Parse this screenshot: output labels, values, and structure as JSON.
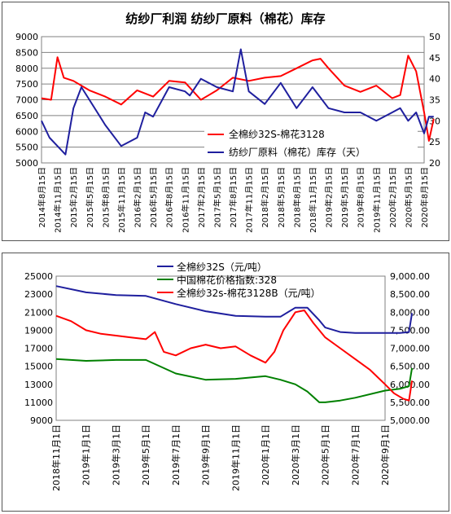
{
  "chart_data": [
    {
      "type": "line",
      "title": "纺纱厂利润  纺纱厂原料（棉花）库存",
      "x_ticks": [
        "2014年8月15日",
        "2014年11月15日",
        "2015年2月15日",
        "2015年5月15日",
        "2015年8月15日",
        "2015年11月15日",
        "2016年2月15日",
        "2016年5月15日",
        "2016年8月15日",
        "2016年11月15日",
        "2017年2月15日",
        "2017年5月15日",
        "2017年8月15日",
        "2017年11月15日",
        "2018年2月15日",
        "2018年5月15日",
        "2018年8月15日",
        "2018年11月15日",
        "2019年2月15日",
        "2019年5月15日",
        "2019年8月15日",
        "2019年11月15日",
        "2020年2月15日",
        "2020年5月15日",
        "2020年8月15日"
      ],
      "y_left": {
        "min": 5000,
        "max": 9000,
        "ticks": [
          "9000",
          "8500",
          "8000",
          "7500",
          "7000",
          "6500",
          "6000",
          "5500",
          "5000"
        ]
      },
      "y_right": {
        "min": 20,
        "max": 50,
        "ticks": [
          "50",
          "45",
          "40",
          "35",
          "30",
          "25",
          "20"
        ]
      },
      "grid": true,
      "legend_position": "inside-bottom-right",
      "series": [
        {
          "name": "全棉纱32S-棉花3128",
          "axis": "left",
          "color": "#ff0000",
          "x": [
            0,
            0.6,
            1.0,
            1.4,
            2,
            3,
            4,
            5,
            6,
            7,
            8,
            9,
            10,
            11,
            12,
            13,
            14,
            15,
            16,
            17,
            17.5,
            18,
            19,
            20,
            21,
            22,
            22.5,
            23,
            23.5,
            24,
            24.3,
            24.6
          ],
          "values": [
            7050,
            7000,
            8350,
            7700,
            7600,
            7300,
            7100,
            6850,
            7300,
            7100,
            7600,
            7550,
            7000,
            7300,
            7700,
            7600,
            7700,
            7750,
            8000,
            8250,
            8300,
            8000,
            7450,
            7250,
            7450,
            7050,
            7150,
            8400,
            7900,
            6600,
            5700,
            6400
          ]
        },
        {
          "name": "纺纱厂原料（棉花）库存（天）",
          "axis": "right",
          "color": "#1f1f9e",
          "x": [
            0,
            0.5,
            1,
            1.5,
            2,
            2.5,
            3,
            4,
            5,
            6,
            6.5,
            7,
            8,
            9,
            9.3,
            10,
            11,
            12,
            12.5,
            13,
            14,
            15,
            16,
            17,
            18,
            19,
            20,
            21,
            22,
            22.5,
            23,
            23.5,
            24,
            24.3,
            24.6
          ],
          "values": [
            30,
            26,
            24,
            22,
            33,
            38,
            35,
            29,
            24,
            26,
            32,
            31,
            38,
            37,
            36,
            40,
            38,
            37,
            47,
            37,
            34,
            39,
            33,
            38,
            33,
            32,
            32,
            30,
            32,
            33,
            30,
            32,
            27,
            31,
            31
          ]
        }
      ]
    },
    {
      "type": "line",
      "x_ticks": [
        "2018年11月1日",
        "2019年1月1日",
        "2019年3月1日",
        "2019年5月1日",
        "2019年7月1日",
        "2019年9月1日",
        "2019年11月1日",
        "2020年1月1日",
        "2020年3月1日",
        "2020年5月1日",
        "2020年7月1日",
        "2020年9月1日"
      ],
      "y_left": {
        "min": 9000,
        "max": 25000,
        "ticks": [
          "25000",
          "23000",
          "21000",
          "19000",
          "17000",
          "15000",
          "13000",
          "11000",
          "9000"
        ]
      },
      "y_right": {
        "min": 5000,
        "max": 9000,
        "ticks": [
          "9,000.00",
          "8,500.00",
          "8,000.00",
          "7,500.00",
          "7,000.00",
          "6,500.00",
          "6,000.00",
          "5,500.00",
          "5,000.00"
        ]
      },
      "grid": false,
      "legend_position": "top-center",
      "series": [
        {
          "name": "全棉纱32S（元/吨）",
          "axis": "left",
          "color": "#1f1f9e",
          "x": [
            0,
            1,
            2,
            3,
            4,
            5,
            6,
            7,
            7.5,
            8,
            8.4,
            8.8,
            9,
            9.5,
            10,
            11,
            11.5,
            11.8,
            11.9
          ],
          "values": [
            23900,
            23200,
            22900,
            22800,
            21900,
            21100,
            20600,
            20500,
            20500,
            21500,
            21500,
            20100,
            19300,
            18800,
            18700,
            18700,
            18700,
            18800,
            20900
          ]
        },
        {
          "name": "中国棉花价格指数:328",
          "axis": "left",
          "color": "#008000",
          "x": [
            0,
            1,
            2,
            3,
            4,
            5,
            6,
            7,
            7.5,
            8,
            8.4,
            8.8,
            9,
            9.5,
            10,
            11,
            11.5,
            11.8,
            11.9
          ],
          "values": [
            15800,
            15600,
            15700,
            15700,
            14200,
            13500,
            13600,
            13900,
            13500,
            13000,
            12200,
            11000,
            11000,
            11200,
            11500,
            12300,
            12500,
            12800,
            14800
          ]
        },
        {
          "name": "全棉纱32s-棉花3128B（元/吨）",
          "axis": "right",
          "color": "#ff0000",
          "x": [
            0,
            0.5,
            1,
            1.5,
            2,
            2.5,
            3,
            3.3,
            3.6,
            4,
            4.5,
            5,
            5.5,
            6,
            6.5,
            7,
            7.3,
            7.6,
            8,
            8.3,
            8.6,
            9,
            9.5,
            10,
            10.5,
            11,
            11.3,
            11.6,
            11.8,
            11.9
          ],
          "values": [
            7900,
            7750,
            7500,
            7400,
            7350,
            7300,
            7250,
            7450,
            6900,
            6800,
            7000,
            7100,
            7000,
            7050,
            6800,
            6600,
            6900,
            7500,
            8000,
            8050,
            7700,
            7300,
            7000,
            6700,
            6400,
            6000,
            5750,
            5600,
            5550,
            6100
          ]
        }
      ]
    }
  ]
}
